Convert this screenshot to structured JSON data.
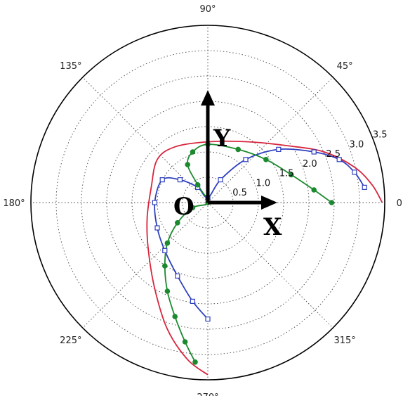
{
  "chart_data": {
    "type": "line",
    "projection": "polar",
    "r_ticks": [
      "0.5",
      "1.0",
      "1.5",
      "2.0",
      "2.5",
      "3.0",
      "3.5"
    ],
    "r_max": 3.5,
    "angle_labels": [
      {
        "deg": 0,
        "label": "0°"
      },
      {
        "deg": 45,
        "label": "45°"
      },
      {
        "deg": 90,
        "label": "90°"
      },
      {
        "deg": 135,
        "label": "135°"
      },
      {
        "deg": 180,
        "label": "180°"
      },
      {
        "deg": 225,
        "label": "225°"
      },
      {
        "deg": 270,
        "label": "270°"
      },
      {
        "deg": 315,
        "label": "315°"
      }
    ],
    "grid": true,
    "annotations": {
      "x_axis": "X",
      "y_axis": "Y",
      "origin": "O"
    },
    "series": [
      {
        "color": "#d7263d",
        "marker": "none",
        "points": [
          {
            "x": 0.0,
            "y": -3.4
          },
          {
            "x": -0.4,
            "y": -3.1
          },
          {
            "x": -0.8,
            "y": -2.5
          },
          {
            "x": -1.05,
            "y": -1.7
          },
          {
            "x": -1.18,
            "y": -0.9
          },
          {
            "x": -1.2,
            "y": -0.3
          },
          {
            "x": -1.12,
            "y": 0.3
          },
          {
            "x": -1.0,
            "y": 0.85
          },
          {
            "x": -0.65,
            "y": 1.1
          },
          {
            "x": 0.0,
            "y": 1.2
          },
          {
            "x": 0.8,
            "y": 1.2
          },
          {
            "x": 1.6,
            "y": 1.12
          },
          {
            "x": 2.3,
            "y": 1.0
          },
          {
            "x": 2.9,
            "y": 0.7
          },
          {
            "x": 3.25,
            "y": 0.35
          },
          {
            "x": 3.45,
            "y": 0.0
          }
        ]
      },
      {
        "color": "#2e3fbf",
        "marker": "square",
        "points": [
          {
            "x": 0.0,
            "y": -2.3
          },
          {
            "x": -0.3,
            "y": -1.95
          },
          {
            "x": -0.6,
            "y": -1.45
          },
          {
            "x": -0.85,
            "y": -0.95
          },
          {
            "x": -1.0,
            "y": -0.5
          },
          {
            "x": -1.05,
            "y": 0.0
          },
          {
            "x": -0.9,
            "y": 0.45
          },
          {
            "x": -0.55,
            "y": 0.45
          },
          {
            "x": -0.2,
            "y": 0.3
          },
          {
            "x": 0.0,
            "y": 0.1
          },
          {
            "x": 0.25,
            "y": 0.45
          },
          {
            "x": 0.75,
            "y": 0.85
          },
          {
            "x": 1.4,
            "y": 1.05
          },
          {
            "x": 2.1,
            "y": 1.0
          },
          {
            "x": 2.6,
            "y": 0.85
          },
          {
            "x": 2.9,
            "y": 0.6
          },
          {
            "x": 3.1,
            "y": 0.3
          }
        ]
      },
      {
        "color": "#1b8a2e",
        "marker": "circle",
        "points": [
          {
            "x": -0.25,
            "y": -3.15
          },
          {
            "x": -0.45,
            "y": -2.75
          },
          {
            "x": -0.65,
            "y": -2.25
          },
          {
            "x": -0.8,
            "y": -1.75
          },
          {
            "x": -0.85,
            "y": -1.25
          },
          {
            "x": -0.8,
            "y": -0.8
          },
          {
            "x": -0.6,
            "y": -0.4
          },
          {
            "x": -0.3,
            "y": -0.1
          },
          {
            "x": 0.0,
            "y": 0.0
          },
          {
            "x": -0.2,
            "y": 0.35
          },
          {
            "x": -0.4,
            "y": 0.75
          },
          {
            "x": -0.3,
            "y": 1.0
          },
          {
            "x": 0.0,
            "y": 1.15
          },
          {
            "x": 0.6,
            "y": 1.05
          },
          {
            "x": 1.15,
            "y": 0.85
          },
          {
            "x": 1.65,
            "y": 0.55
          },
          {
            "x": 2.1,
            "y": 0.25
          },
          {
            "x": 2.45,
            "y": 0.0
          }
        ]
      }
    ]
  }
}
